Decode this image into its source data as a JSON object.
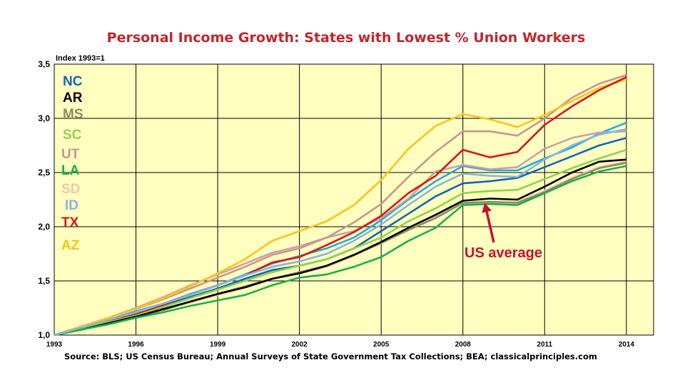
{
  "chart_data": {
    "type": "line",
    "title": "Personal Income Growth: States with Lowest % Union Workers",
    "ylabel": "Index 1993=1",
    "xlabel": "",
    "source": "Source: BLS; US Census Bureau; Annual Surveys of State Government Tax Collections; BEA; classicalprinciples.com",
    "xlim": [
      1993,
      2015
    ],
    "ylim": [
      1.0,
      3.5
    ],
    "grid": true,
    "background_color": "#ffffc0",
    "x_ticks": [
      1993,
      1996,
      1999,
      2002,
      2005,
      2008,
      2011,
      2014
    ],
    "y_ticks": [
      1.0,
      1.5,
      2.0,
      2.5,
      3.0,
      3.5
    ],
    "y_tick_labels": [
      "1,0",
      "1,5",
      "2,0",
      "2,5",
      "3,0",
      "3,5"
    ],
    "legend_position": "left",
    "x": [
      1993,
      1994,
      1995,
      1996,
      1997,
      1998,
      1999,
      2000,
      2001,
      2002,
      2003,
      2004,
      2005,
      2006,
      2007,
      2008,
      2009,
      2010,
      2011,
      2012,
      2013,
      2014
    ],
    "series": [
      {
        "name": "NC",
        "color": "#1565b5",
        "values": [
          1.0,
          1.06,
          1.13,
          1.2,
          1.27,
          1.35,
          1.43,
          1.52,
          1.6,
          1.64,
          1.7,
          1.8,
          1.96,
          2.12,
          2.28,
          2.4,
          2.42,
          2.45,
          2.55,
          2.65,
          2.75,
          2.82
        ]
      },
      {
        "name": "AR",
        "color": "#000000",
        "values": [
          1.0,
          1.05,
          1.11,
          1.17,
          1.24,
          1.31,
          1.38,
          1.44,
          1.52,
          1.57,
          1.64,
          1.74,
          1.86,
          1.99,
          2.11,
          2.24,
          2.26,
          2.25,
          2.37,
          2.5,
          2.6,
          2.62
        ]
      },
      {
        "name": "MS",
        "color": "#8e8a62",
        "values": [
          1.0,
          1.05,
          1.11,
          1.17,
          1.23,
          1.31,
          1.38,
          1.45,
          1.52,
          1.58,
          1.64,
          1.74,
          1.85,
          1.97,
          2.08,
          2.22,
          2.23,
          2.22,
          2.32,
          2.44,
          2.54,
          2.59
        ]
      },
      {
        "name": "SC",
        "color": "#92d050",
        "values": [
          1.0,
          1.06,
          1.12,
          1.18,
          1.26,
          1.34,
          1.42,
          1.5,
          1.58,
          1.64,
          1.7,
          1.8,
          1.9,
          2.05,
          2.17,
          2.31,
          2.33,
          2.34,
          2.44,
          2.54,
          2.63,
          2.71
        ]
      },
      {
        "name": "UT",
        "color": "#c9958f",
        "values": [
          1.0,
          1.08,
          1.16,
          1.24,
          1.33,
          1.43,
          1.53,
          1.63,
          1.74,
          1.8,
          1.9,
          2.04,
          2.21,
          2.46,
          2.69,
          2.88,
          2.88,
          2.84,
          3.0,
          3.19,
          3.32,
          3.4
        ]
      },
      {
        "name": "LA",
        "color": "#1aae4c",
        "values": [
          1.0,
          1.05,
          1.1,
          1.16,
          1.21,
          1.27,
          1.32,
          1.37,
          1.46,
          1.53,
          1.56,
          1.63,
          1.72,
          1.87,
          1.99,
          2.2,
          2.21,
          2.2,
          2.31,
          2.42,
          2.51,
          2.56
        ]
      },
      {
        "name": "SD",
        "color": "#f1c6ad",
        "values": [
          1.0,
          1.05,
          1.11,
          1.17,
          1.23,
          1.3,
          1.37,
          1.44,
          1.52,
          1.57,
          1.63,
          1.73,
          1.85,
          1.97,
          2.09,
          2.22,
          2.22,
          2.23,
          2.33,
          2.45,
          2.55,
          2.6
        ]
      },
      {
        "name": "ID",
        "color": "#8bb4dd",
        "values": [
          1.0,
          1.07,
          1.14,
          1.21,
          1.29,
          1.37,
          1.46,
          1.55,
          1.63,
          1.68,
          1.75,
          1.87,
          2.02,
          2.2,
          2.37,
          2.49,
          2.47,
          2.46,
          2.62,
          2.75,
          2.85,
          2.9
        ]
      },
      {
        "name": "TX",
        "color": "#d7141a",
        "values": [
          1.0,
          1.06,
          1.13,
          1.19,
          1.28,
          1.37,
          1.46,
          1.55,
          1.67,
          1.72,
          1.83,
          1.95,
          2.1,
          2.31,
          2.47,
          2.71,
          2.64,
          2.69,
          2.94,
          3.11,
          3.26,
          3.38
        ]
      },
      {
        "name": "AZ",
        "color": "#fcc419",
        "values": [
          1.0,
          1.08,
          1.16,
          1.24,
          1.34,
          1.45,
          1.57,
          1.7,
          1.87,
          1.96,
          2.05,
          2.2,
          2.43,
          2.72,
          2.93,
          3.04,
          2.99,
          2.92,
          3.03,
          3.16,
          3.28,
          3.36
        ]
      },
      {
        "name": "",
        "color": "#24aae2",
        "values": [
          1.0,
          1.07,
          1.14,
          1.22,
          1.29,
          1.38,
          1.46,
          1.56,
          1.66,
          1.73,
          1.8,
          1.9,
          2.06,
          2.25,
          2.42,
          2.56,
          2.52,
          2.52,
          2.63,
          2.73,
          2.86,
          2.96
        ]
      },
      {
        "name": "",
        "color": "#c9a0a8",
        "values": [
          1.0,
          1.08,
          1.16,
          1.25,
          1.35,
          1.46,
          1.56,
          1.66,
          1.76,
          1.82,
          1.9,
          1.96,
          2.08,
          2.26,
          2.51,
          2.57,
          2.53,
          2.55,
          2.72,
          2.82,
          2.87,
          2.88
        ]
      }
    ],
    "annotations": [
      {
        "text": "US average",
        "color": "#c8102e",
        "points_to": {
          "x": 2008.8,
          "y": 2.22
        }
      }
    ]
  }
}
